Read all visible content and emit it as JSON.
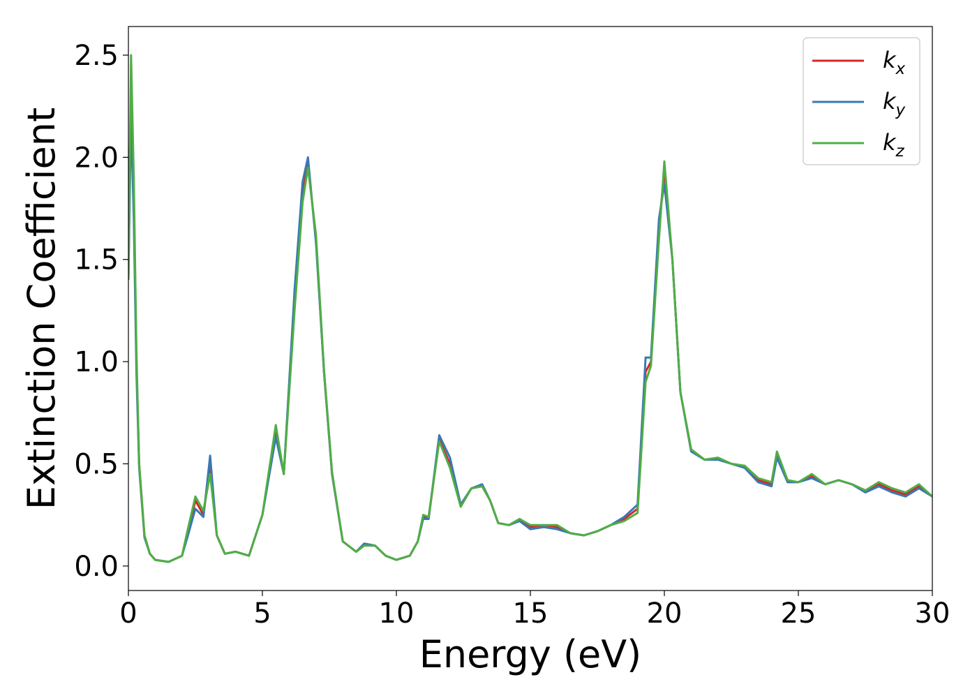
{
  "chart_data": {
    "type": "line",
    "title": "",
    "xlabel": "Energy (eV)",
    "ylabel": "Extinction Coefficient",
    "xlim": [
      0,
      30
    ],
    "ylim": [
      -0.12,
      2.64
    ],
    "xticks": [
      0,
      5,
      10,
      15,
      20,
      25,
      30
    ],
    "yticks": [
      0.0,
      0.5,
      1.0,
      1.5,
      2.0,
      2.5
    ],
    "xtick_labels": [
      "0",
      "5",
      "10",
      "15",
      "20",
      "25",
      "30"
    ],
    "ytick_labels": [
      "0.0",
      "0.5",
      "1.0",
      "1.5",
      "2.0",
      "2.5"
    ],
    "grid": false,
    "legend_position": "top-right",
    "x": [
      0.0,
      0.1,
      0.2,
      0.3,
      0.4,
      0.6,
      0.8,
      1.0,
      1.5,
      2.0,
      2.2,
      2.5,
      2.8,
      3.05,
      3.3,
      3.6,
      4.0,
      4.5,
      5.0,
      5.5,
      5.8,
      6.2,
      6.5,
      6.7,
      7.0,
      7.3,
      7.6,
      8.0,
      8.5,
      8.8,
      9.2,
      9.6,
      10.0,
      10.5,
      10.8,
      11.0,
      11.2,
      11.6,
      12.0,
      12.4,
      12.8,
      13.2,
      13.5,
      13.8,
      14.2,
      14.6,
      15.0,
      15.5,
      16.0,
      16.5,
      17.0,
      17.5,
      18.0,
      18.5,
      19.0,
      19.3,
      19.5,
      19.8,
      20.0,
      20.3,
      20.6,
      21.0,
      21.5,
      22.0,
      22.5,
      23.0,
      23.5,
      24.0,
      24.2,
      24.6,
      25.0,
      25.5,
      26.0,
      26.5,
      27.0,
      27.5,
      28.0,
      28.5,
      29.0,
      29.5,
      30.0
    ],
    "series": [
      {
        "name": "k_x",
        "color": "#d62728",
        "values": [
          1.4,
          2.4,
          1.8,
          1.0,
          0.5,
          0.15,
          0.06,
          0.03,
          0.02,
          0.05,
          0.15,
          0.32,
          0.25,
          0.49,
          0.15,
          0.06,
          0.07,
          0.05,
          0.25,
          0.65,
          0.45,
          1.3,
          1.82,
          1.97,
          1.6,
          0.95,
          0.45,
          0.12,
          0.07,
          0.1,
          0.1,
          0.05,
          0.03,
          0.05,
          0.12,
          0.24,
          0.23,
          0.62,
          0.5,
          0.3,
          0.38,
          0.39,
          0.32,
          0.21,
          0.2,
          0.23,
          0.19,
          0.2,
          0.19,
          0.16,
          0.15,
          0.17,
          0.2,
          0.23,
          0.28,
          0.95,
          1.0,
          1.65,
          1.94,
          1.5,
          0.85,
          0.57,
          0.52,
          0.53,
          0.5,
          0.49,
          0.42,
          0.4,
          0.55,
          0.41,
          0.41,
          0.44,
          0.4,
          0.42,
          0.4,
          0.37,
          0.4,
          0.37,
          0.35,
          0.39,
          0.34
        ]
      },
      {
        "name": "k_y",
        "color": "#3a78b4",
        "values": [
          1.4,
          2.2,
          1.7,
          0.95,
          0.48,
          0.14,
          0.06,
          0.03,
          0.02,
          0.05,
          0.14,
          0.28,
          0.24,
          0.54,
          0.15,
          0.06,
          0.07,
          0.05,
          0.25,
          0.63,
          0.45,
          1.35,
          1.88,
          2.0,
          1.58,
          0.95,
          0.45,
          0.12,
          0.07,
          0.11,
          0.1,
          0.05,
          0.03,
          0.05,
          0.12,
          0.23,
          0.23,
          0.64,
          0.53,
          0.3,
          0.38,
          0.4,
          0.32,
          0.21,
          0.2,
          0.22,
          0.18,
          0.19,
          0.18,
          0.16,
          0.15,
          0.17,
          0.2,
          0.24,
          0.3,
          1.02,
          1.02,
          1.7,
          1.87,
          1.5,
          0.85,
          0.56,
          0.52,
          0.52,
          0.5,
          0.48,
          0.41,
          0.39,
          0.53,
          0.41,
          0.41,
          0.43,
          0.4,
          0.42,
          0.4,
          0.36,
          0.39,
          0.36,
          0.34,
          0.38,
          0.34
        ]
      },
      {
        "name": "k_z",
        "color": "#4fae45",
        "values": [
          1.4,
          2.5,
          1.9,
          1.05,
          0.5,
          0.15,
          0.06,
          0.03,
          0.02,
          0.05,
          0.17,
          0.34,
          0.27,
          0.45,
          0.15,
          0.06,
          0.07,
          0.05,
          0.25,
          0.69,
          0.45,
          1.25,
          1.78,
          1.95,
          1.62,
          0.96,
          0.46,
          0.12,
          0.07,
          0.1,
          0.1,
          0.05,
          0.03,
          0.05,
          0.12,
          0.25,
          0.24,
          0.61,
          0.48,
          0.29,
          0.38,
          0.39,
          0.32,
          0.21,
          0.2,
          0.23,
          0.2,
          0.2,
          0.2,
          0.16,
          0.15,
          0.17,
          0.2,
          0.22,
          0.26,
          0.9,
          0.98,
          1.6,
          1.98,
          1.5,
          0.85,
          0.57,
          0.52,
          0.53,
          0.5,
          0.49,
          0.43,
          0.41,
          0.56,
          0.42,
          0.41,
          0.45,
          0.4,
          0.42,
          0.4,
          0.37,
          0.41,
          0.38,
          0.36,
          0.4,
          0.34
        ]
      }
    ],
    "legend": [
      {
        "main": "k",
        "sub": "x"
      },
      {
        "main": "k",
        "sub": "y"
      },
      {
        "main": "k",
        "sub": "z"
      }
    ]
  }
}
